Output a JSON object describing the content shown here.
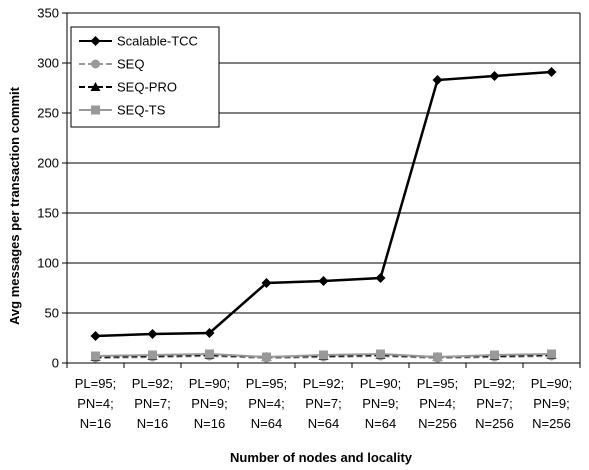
{
  "chart_data": {
    "type": "line",
    "title": "",
    "xlabel": "Number of nodes and locality",
    "ylabel": "Avg messages per transaction commit",
    "ylim": [
      0,
      350
    ],
    "yticks": [
      0,
      50,
      100,
      150,
      200,
      250,
      300,
      350
    ],
    "grid": "horizontal",
    "legend_position": "top-left",
    "categories": [
      [
        "PL=95;",
        "PN=4;",
        "N=16"
      ],
      [
        "PL=92;",
        "PN=7;",
        "N=16"
      ],
      [
        "PL=90;",
        "PN=9;",
        "N=16"
      ],
      [
        "PL=95;",
        "PN=4;",
        "N=64"
      ],
      [
        "PL=92;",
        "PN=7;",
        "N=64"
      ],
      [
        "PL=90;",
        "PN=9;",
        "N=64"
      ],
      [
        "PL=95;",
        "PN=4;",
        "N=256"
      ],
      [
        "PL=92;",
        "PN=7;",
        "N=256"
      ],
      [
        "PL=90;",
        "PN=9;",
        "N=256"
      ]
    ],
    "series": [
      {
        "name": "Scalable-TCC",
        "marker": "diamond",
        "color": "#000000",
        "dash": "solid",
        "values": [
          27,
          29,
          30,
          80,
          82,
          85,
          283,
          287,
          291
        ]
      },
      {
        "name": "SEQ",
        "marker": "circle",
        "color": "#999999",
        "dash": "dashed",
        "values": [
          5,
          6,
          7,
          5,
          6,
          7,
          5,
          6,
          7
        ]
      },
      {
        "name": "SEQ-PRO",
        "marker": "triangle",
        "color": "#000000",
        "dash": "dashed",
        "values": [
          6,
          7,
          8,
          6,
          7,
          8,
          6,
          7,
          8
        ]
      },
      {
        "name": "SEQ-TS",
        "marker": "square",
        "color": "#999999",
        "dash": "solid",
        "values": [
          7,
          8,
          9,
          6,
          8,
          9,
          6,
          8,
          9
        ]
      }
    ]
  }
}
